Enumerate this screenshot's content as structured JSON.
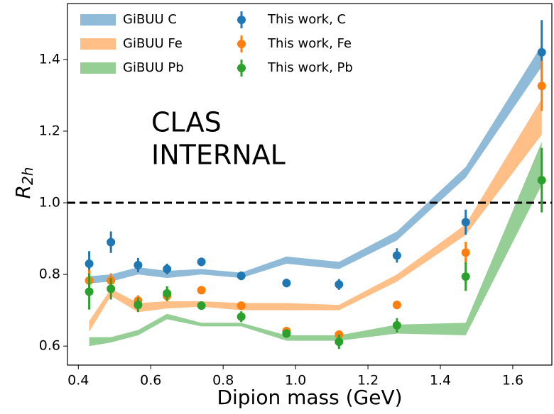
{
  "chart_data": {
    "type": "errorbar",
    "xlabel": "Dipion mass (GeV)",
    "ylabel": {
      "base": "R",
      "sub": "2h"
    },
    "annotation": [
      "CLAS",
      "INTERNAL"
    ],
    "hline": 1.0,
    "xlim": [
      0.37,
      1.708
    ],
    "ylim": [
      0.547,
      1.556
    ],
    "xticks": [
      0.4,
      0.6,
      0.8,
      {
        "value": 1.0,
        "label": "1.0"
      },
      1.2,
      1.4,
      1.6
    ],
    "yticks": [
      0.6,
      0.8,
      {
        "value": 1.0,
        "label": "1.0"
      },
      1.2,
      1.4
    ],
    "x": [
      0.43,
      0.49,
      0.565,
      0.645,
      0.74,
      0.85,
      0.975,
      1.12,
      1.28,
      1.47,
      1.68
    ],
    "bands": [
      {
        "name": "GiBUU C",
        "color": "#1f77b4",
        "lower": [
          0.775,
          0.78,
          0.8,
          0.79,
          0.8,
          0.79,
          0.83,
          0.815,
          0.895,
          1.07,
          1.38
        ],
        "upper": [
          0.795,
          0.8,
          0.82,
          0.81,
          0.815,
          0.805,
          0.85,
          0.835,
          0.92,
          1.1,
          1.44
        ]
      },
      {
        "name": "GiBUU Fe",
        "color": "#ff7f0e",
        "lower": [
          0.64,
          0.74,
          0.695,
          0.705,
          0.71,
          0.7,
          0.7,
          0.7,
          0.78,
          0.91,
          1.19
        ],
        "upper": [
          0.67,
          0.76,
          0.72,
          0.725,
          0.725,
          0.72,
          0.72,
          0.715,
          0.8,
          0.94,
          1.29
        ]
      },
      {
        "name": "GiBUU Pb",
        "color": "#2ca02c",
        "lower": [
          0.6,
          0.61,
          0.63,
          0.675,
          0.655,
          0.655,
          0.615,
          0.615,
          0.635,
          0.63,
          1.05
        ],
        "upper": [
          0.625,
          0.625,
          0.645,
          0.69,
          0.665,
          0.665,
          0.63,
          0.63,
          0.66,
          0.665,
          1.17
        ]
      }
    ],
    "series": [
      {
        "name": "This work, C",
        "color": "#1f77b4",
        "values": [
          0.83,
          0.89,
          0.826,
          0.815,
          0.835,
          0.796,
          0.776,
          0.772,
          0.853,
          0.946,
          1.42
        ],
        "errors": [
          0.035,
          0.03,
          0.02,
          0.015,
          0.012,
          0.012,
          0.012,
          0.015,
          0.02,
          0.035,
          0.09
        ]
      },
      {
        "name": "This work, Fe",
        "color": "#ff7f0e",
        "values": [
          0.783,
          0.783,
          0.727,
          0.74,
          0.756,
          0.713,
          0.642,
          0.632,
          0.715,
          0.861,
          1.326
        ],
        "errors": [
          0.03,
          0.02,
          0.015,
          0.015,
          0.01,
          0.01,
          0.01,
          0.01,
          0.012,
          0.03,
          0.07
        ]
      },
      {
        "name": "This work, Pb",
        "color": "#2ca02c",
        "values": [
          0.752,
          0.76,
          0.715,
          0.747,
          0.713,
          0.682,
          0.635,
          0.612,
          0.658,
          0.794,
          1.063
        ],
        "errors": [
          0.05,
          0.03,
          0.02,
          0.02,
          0.012,
          0.015,
          0.012,
          0.02,
          0.02,
          0.04,
          0.09
        ]
      }
    ]
  }
}
